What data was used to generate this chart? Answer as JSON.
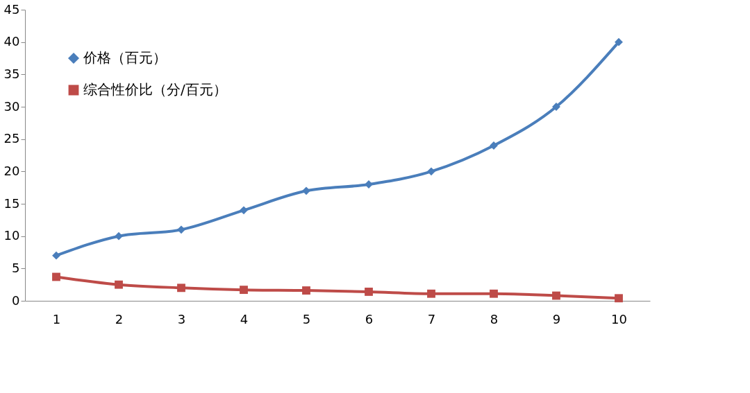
{
  "chart_data": {
    "type": "line",
    "categories": [
      "1",
      "2",
      "3",
      "4",
      "5",
      "6",
      "7",
      "8",
      "9",
      "10"
    ],
    "series": [
      {
        "name": "价格（百元）",
        "color": "#4a7ebb",
        "marker": "diamond",
        "values": [
          7,
          10,
          11,
          14,
          17,
          18,
          20,
          24,
          30,
          40
        ]
      },
      {
        "name": "综合性价比（分/百元）",
        "color": "#be4b48",
        "marker": "square",
        "values": [
          3.7,
          2.5,
          2.0,
          1.7,
          1.6,
          1.4,
          1.1,
          1.1,
          0.8,
          0.4
        ]
      }
    ],
    "ylim": [
      0,
      45
    ],
    "yticks": [
      0,
      5,
      10,
      15,
      20,
      25,
      30,
      35,
      40,
      45
    ],
    "grid": false,
    "legend": "top left"
  }
}
